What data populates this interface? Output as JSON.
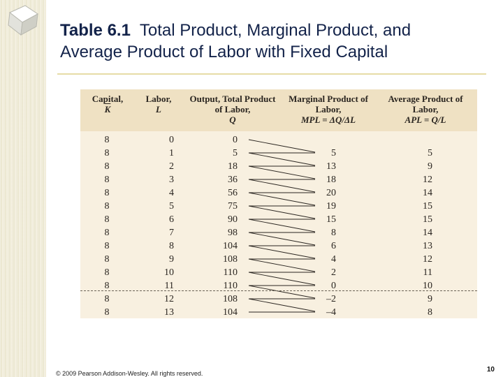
{
  "title": {
    "label": "Table 6.1",
    "text_line1": "Total Product, Marginal Product, and",
    "text_line2": "Average Product of Labor with Fixed Capital"
  },
  "table": {
    "headers": {
      "capital_l1": "Capital,",
      "capital_sym": "K",
      "labor_l1": "Labor,",
      "labor_sym": "L",
      "output_l1": "Output, Total Product",
      "output_l2": "of Labor,",
      "output_sym": "Q",
      "mp_l1": "Marginal Product of",
      "mp_l2": "Labor,",
      "mp_formula": "MPL = ΔQ/ΔL",
      "ap_l1": "Average Product of",
      "ap_l2": "Labor,",
      "ap_formula": "APL = Q/L"
    },
    "rows": [
      {
        "k": "8",
        "l": "0",
        "q": "0",
        "mp": "",
        "ap": ""
      },
      {
        "k": "8",
        "l": "1",
        "q": "5",
        "mp": "5",
        "ap": "5"
      },
      {
        "k": "8",
        "l": "2",
        "q": "18",
        "mp": "13",
        "ap": "9"
      },
      {
        "k": "8",
        "l": "3",
        "q": "36",
        "mp": "18",
        "ap": "12"
      },
      {
        "k": "8",
        "l": "4",
        "q": "56",
        "mp": "20",
        "ap": "14"
      },
      {
        "k": "8",
        "l": "5",
        "q": "75",
        "mp": "19",
        "ap": "15"
      },
      {
        "k": "8",
        "l": "6",
        "q": "90",
        "mp": "15",
        "ap": "15"
      },
      {
        "k": "8",
        "l": "7",
        "q": "98",
        "mp": "8",
        "ap": "14"
      },
      {
        "k": "8",
        "l": "8",
        "q": "104",
        "mp": "6",
        "ap": "13"
      },
      {
        "k": "8",
        "l": "9",
        "q": "108",
        "mp": "4",
        "ap": "12"
      },
      {
        "k": "8",
        "l": "10",
        "q": "110",
        "mp": "2",
        "ap": "11"
      },
      {
        "k": "8",
        "l": "11",
        "q": "110",
        "mp": "0",
        "ap": "10"
      },
      {
        "k": "8",
        "l": "12",
        "q": "108",
        "mp": "–2",
        "ap": "9"
      },
      {
        "k": "8",
        "l": "13",
        "q": "104",
        "mp": "–4",
        "ap": "8"
      }
    ]
  },
  "footer": {
    "copyright": "© 2009 Pearson Addison-Wesley. All rights reserved.",
    "page_number": "10"
  },
  "colors": {
    "title": "#13234a",
    "header_band": "#efe1c3",
    "table_bg": "#f8f0e0",
    "rule": "#e6dca6"
  }
}
